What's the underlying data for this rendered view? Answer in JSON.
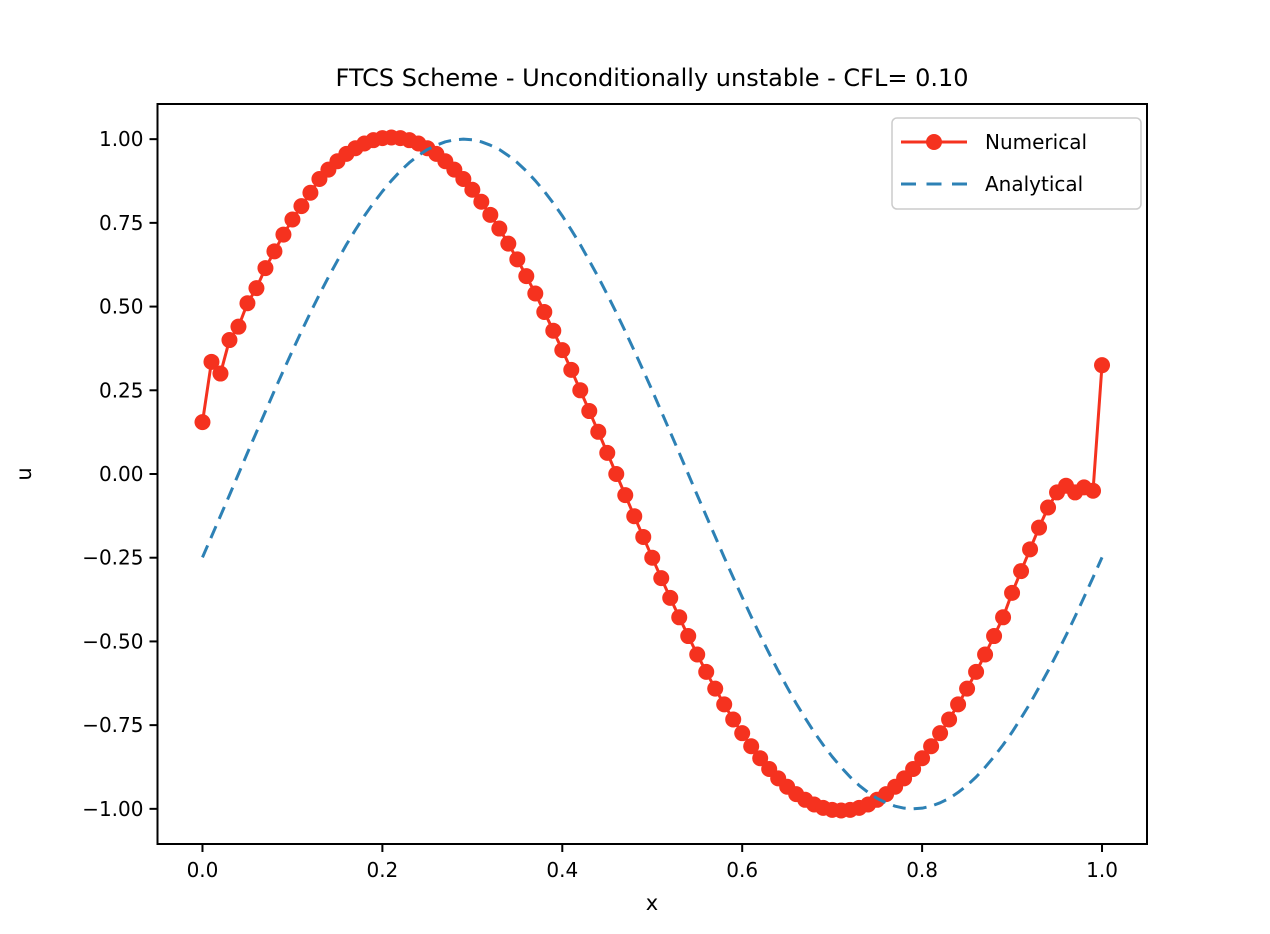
{
  "chart_data": {
    "type": "line",
    "title": "FTCS Scheme - Unconditionally unstable - CFL= 0.10",
    "xlabel": "x",
    "ylabel": "u",
    "xlim": [
      -0.05,
      1.05
    ],
    "ylim": [
      -1.105,
      1.105
    ],
    "grid": false,
    "legend_position": "upper right",
    "xticks": {
      "values": [
        0.0,
        0.2,
        0.4,
        0.6,
        0.8,
        1.0
      ],
      "labels": [
        "0.0",
        "0.2",
        "0.4",
        "0.6",
        "0.8",
        "1.0"
      ]
    },
    "yticks": {
      "values": [
        1.0,
        0.75,
        0.5,
        0.25,
        0.0,
        -0.25,
        -0.5,
        -0.75,
        -1.0
      ],
      "labels": [
        "1.00",
        "0.75",
        "0.50",
        "0.25",
        "0.00",
        "−0.25",
        "−0.50",
        "−0.75",
        "−1.00"
      ]
    },
    "x": [
      0.0,
      0.01,
      0.02,
      0.03,
      0.04,
      0.05,
      0.06,
      0.07,
      0.08,
      0.09,
      0.1,
      0.11,
      0.12,
      0.13,
      0.14,
      0.15,
      0.16,
      0.17,
      0.18,
      0.19,
      0.2,
      0.21,
      0.22,
      0.23,
      0.24,
      0.25,
      0.26,
      0.27,
      0.28,
      0.29,
      0.3,
      0.31,
      0.32,
      0.33,
      0.34,
      0.35,
      0.36,
      0.37,
      0.38,
      0.39,
      0.4,
      0.41,
      0.42,
      0.43,
      0.44,
      0.45,
      0.46,
      0.47,
      0.48,
      0.49,
      0.5,
      0.51,
      0.52,
      0.53,
      0.54,
      0.55,
      0.56,
      0.57,
      0.58,
      0.59,
      0.6,
      0.61,
      0.62,
      0.63,
      0.64,
      0.65,
      0.66,
      0.67,
      0.68,
      0.69,
      0.7,
      0.71,
      0.72,
      0.73,
      0.74,
      0.75,
      0.76,
      0.77,
      0.78,
      0.79,
      0.8,
      0.81,
      0.82,
      0.83,
      0.84,
      0.85,
      0.86,
      0.87,
      0.88,
      0.89,
      0.9,
      0.91,
      0.92,
      0.93,
      0.94,
      0.95,
      0.96,
      0.97,
      0.98,
      0.99,
      1.0
    ],
    "series": [
      {
        "name": "Numerical",
        "color": "#f5321f",
        "line_style": "solid",
        "line_width": 3,
        "marker": "circle",
        "marker_radius": 8,
        "values": [
          0.155,
          0.335,
          0.3,
          0.4,
          0.44,
          0.51,
          0.555,
          0.615,
          0.665,
          0.715,
          0.76,
          0.8,
          0.84,
          0.881,
          0.909,
          0.934,
          0.956,
          0.973,
          0.987,
          0.997,
          1.003,
          1.005,
          1.003,
          0.997,
          0.987,
          0.973,
          0.956,
          0.934,
          0.909,
          0.881,
          0.849,
          0.813,
          0.774,
          0.733,
          0.688,
          0.641,
          0.591,
          0.539,
          0.484,
          0.428,
          0.37,
          0.311,
          0.25,
          0.188,
          0.126,
          0.063,
          0.0,
          -0.063,
          -0.126,
          -0.188,
          -0.25,
          -0.311,
          -0.37,
          -0.428,
          -0.484,
          -0.539,
          -0.591,
          -0.641,
          -0.688,
          -0.733,
          -0.774,
          -0.813,
          -0.849,
          -0.881,
          -0.909,
          -0.934,
          -0.956,
          -0.973,
          -0.987,
          -0.997,
          -1.003,
          -1.005,
          -1.003,
          -0.997,
          -0.987,
          -0.973,
          -0.956,
          -0.934,
          -0.909,
          -0.881,
          -0.849,
          -0.813,
          -0.774,
          -0.733,
          -0.688,
          -0.641,
          -0.591,
          -0.539,
          -0.484,
          -0.428,
          -0.355,
          -0.29,
          -0.225,
          -0.16,
          -0.1,
          -0.055,
          -0.035,
          -0.055,
          -0.04,
          -0.05,
          0.325
        ]
      },
      {
        "name": "Analytical",
        "color": "#2d81b5",
        "line_style": "dashed",
        "line_width": 3,
        "marker": "none",
        "marker_radius": 0,
        "values": [
          -0.249,
          -0.187,
          -0.125,
          -0.063,
          0.0,
          0.063,
          0.125,
          0.187,
          0.249,
          0.309,
          0.368,
          0.426,
          0.482,
          0.536,
          0.588,
          0.637,
          0.685,
          0.729,
          0.771,
          0.809,
          0.844,
          0.876,
          0.905,
          0.93,
          0.951,
          0.969,
          0.982,
          0.992,
          0.998,
          1.0,
          0.998,
          0.992,
          0.982,
          0.969,
          0.951,
          0.93,
          0.905,
          0.876,
          0.844,
          0.809,
          0.771,
          0.729,
          0.685,
          0.637,
          0.588,
          0.536,
          0.482,
          0.426,
          0.368,
          0.309,
          0.249,
          0.187,
          0.125,
          0.063,
          0.0,
          -0.063,
          -0.125,
          -0.187,
          -0.249,
          -0.309,
          -0.368,
          -0.426,
          -0.482,
          -0.536,
          -0.588,
          -0.637,
          -0.685,
          -0.729,
          -0.771,
          -0.809,
          -0.844,
          -0.876,
          -0.905,
          -0.93,
          -0.951,
          -0.969,
          -0.982,
          -0.992,
          -0.998,
          -1.0,
          -0.998,
          -0.992,
          -0.982,
          -0.969,
          -0.951,
          -0.93,
          -0.905,
          -0.876,
          -0.844,
          -0.809,
          -0.771,
          -0.729,
          -0.685,
          -0.637,
          -0.588,
          -0.536,
          -0.482,
          -0.426,
          -0.368,
          -0.309,
          -0.249
        ]
      }
    ],
    "style": {
      "spine_color": "#000000",
      "text_color": "#000000",
      "legend_border_color": "#cccccc",
      "legend_background": "rgba(255,255,255,0.85)",
      "background": "#ffffff"
    }
  }
}
